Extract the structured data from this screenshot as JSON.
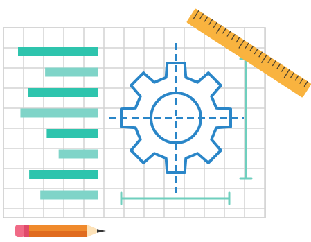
{
  "illustration": {
    "subject": "blueprint-gear-drawing",
    "icons": [
      "grid-paper",
      "gear-icon",
      "ruler-icon",
      "pencil-icon",
      "bar-chart-icon",
      "dimension-line-icon"
    ]
  },
  "bars": {
    "values": [
      1.0,
      0.66,
      0.87,
      0.97,
      0.64,
      0.49,
      0.86,
      0.72
    ],
    "colors": [
      "#2ec4ad",
      "#7fd4c8",
      "#2ec4ad",
      "#7fd4c8",
      "#2ec4ad",
      "#7fd4c8",
      "#2ec4ad",
      "#7fd4c8"
    ]
  },
  "colors": {
    "grid": "#d4d4d4",
    "grid_outline": "#c8c8c8",
    "gear": "#2a86c8",
    "axis_dash": "#2a86c8",
    "dimension": "#6fcfbe",
    "ruler_body": "#f9b33f",
    "ruler_ticks": "#4a4030",
    "pencil_body": "#f08a2c",
    "pencil_body_dark": "#e06b1e",
    "pencil_eraser": "#f06a86",
    "pencil_band": "#e04a6a",
    "pencil_wood": "#fde2b8",
    "pencil_lead": "#333333"
  }
}
